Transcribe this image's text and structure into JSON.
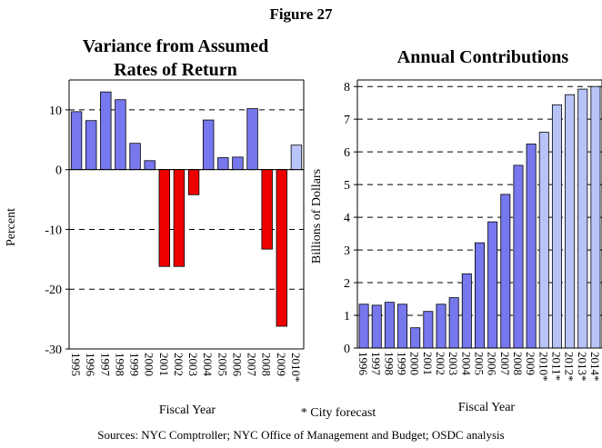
{
  "figure_title": "Figure 27",
  "note": "* City forecast",
  "source": "Sources: NYC Comptroller; NYC  Office of Management and Budget; OSDC analysis",
  "chart_data": [
    {
      "type": "bar",
      "title": "Variance from Assumed Rates of Return",
      "ylabel": "Percent",
      "xlabel": "Fiscal Year",
      "categories": [
        "1995",
        "1996",
        "1997",
        "1998",
        "1999",
        "2000",
        "2001",
        "2002",
        "2003",
        "2004",
        "2005",
        "2006",
        "2007",
        "2008",
        "2009",
        "2010*"
      ],
      "values": [
        9.7,
        8.2,
        13.0,
        11.7,
        4.4,
        1.5,
        -16.2,
        -16.2,
        -4.2,
        8.3,
        2.0,
        2.1,
        10.2,
        -13.3,
        -26.2,
        4.1
      ],
      "colors": [
        "#7777ee",
        "#7777ee",
        "#7777ee",
        "#7777ee",
        "#7777ee",
        "#7777ee",
        "#ee0000",
        "#ee0000",
        "#ee0000",
        "#7777ee",
        "#7777ee",
        "#7777ee",
        "#7777ee",
        "#ee0000",
        "#ee0000",
        "#b8c4f8"
      ],
      "ylim": [
        -30,
        15
      ],
      "yticks": [
        10,
        0,
        -10,
        -20,
        -30
      ],
      "grid": true
    },
    {
      "type": "bar",
      "title": "Annual Contributions",
      "ylabel": "Billions of Dollars",
      "xlabel": "Fiscal Year",
      "categories": [
        "1996",
        "1997",
        "1998",
        "1999",
        "2000",
        "2001",
        "2002",
        "2003",
        "2004",
        "2005",
        "2006",
        "2007",
        "2008",
        "2009",
        "2010*",
        "2011*",
        "2012*",
        "2013*",
        "2014*"
      ],
      "values": [
        1.34,
        1.31,
        1.4,
        1.34,
        0.62,
        1.12,
        1.34,
        1.54,
        2.27,
        3.22,
        3.86,
        4.7,
        5.59,
        6.24,
        6.6,
        7.44,
        7.75,
        7.92,
        8.0
      ],
      "colors": [
        "#7777ee",
        "#7777ee",
        "#7777ee",
        "#7777ee",
        "#7777ee",
        "#7777ee",
        "#7777ee",
        "#7777ee",
        "#7777ee",
        "#7777ee",
        "#7777ee",
        "#7777ee",
        "#7777ee",
        "#7777ee",
        "#b8c4f8",
        "#b8c4f8",
        "#b8c4f8",
        "#b8c4f8",
        "#b8c4f8"
      ],
      "ylim": [
        0,
        8.2
      ],
      "yticks": [
        0,
        1,
        2,
        3,
        4,
        5,
        6,
        7,
        8
      ],
      "grid": true
    }
  ]
}
